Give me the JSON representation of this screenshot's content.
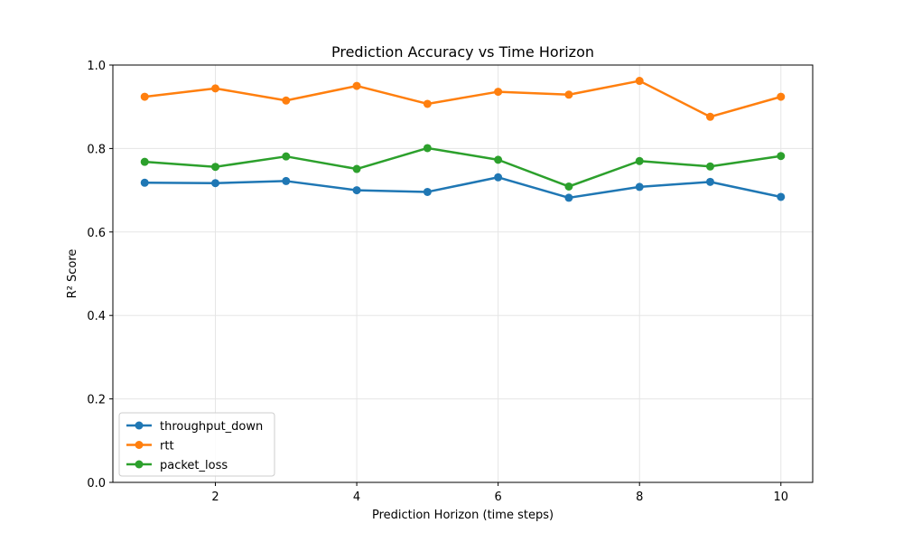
{
  "chart_data": {
    "type": "line",
    "title": "Prediction Accuracy vs Time Horizon",
    "xlabel": "Prediction Horizon (time steps)",
    "ylabel": "R² Score",
    "x": [
      1,
      2,
      3,
      4,
      5,
      6,
      7,
      8,
      9,
      10
    ],
    "xlim": [
      0.55,
      10.45
    ],
    "ylim": [
      0,
      1.0
    ],
    "xticks": [
      2,
      4,
      6,
      8,
      10
    ],
    "yticks": [
      0.0,
      0.2,
      0.4,
      0.6,
      0.8,
      1.0
    ],
    "ytick_labels": [
      "0.0",
      "0.2",
      "0.4",
      "0.6",
      "0.8",
      "1.0"
    ],
    "grid": true,
    "legend_position": "lower-left",
    "series": [
      {
        "name": "throughput_down",
        "color": "#1f77b4",
        "values": [
          0.718,
          0.717,
          0.722,
          0.7,
          0.696,
          0.731,
          0.682,
          0.708,
          0.72,
          0.684
        ]
      },
      {
        "name": "rtt",
        "color": "#ff7f0e",
        "values": [
          0.924,
          0.944,
          0.915,
          0.95,
          0.907,
          0.936,
          0.929,
          0.962,
          0.876,
          0.924
        ]
      },
      {
        "name": "packet_loss",
        "color": "#2ca02c",
        "values": [
          0.768,
          0.756,
          0.781,
          0.751,
          0.801,
          0.773,
          0.709,
          0.77,
          0.757,
          0.782
        ]
      }
    ]
  }
}
